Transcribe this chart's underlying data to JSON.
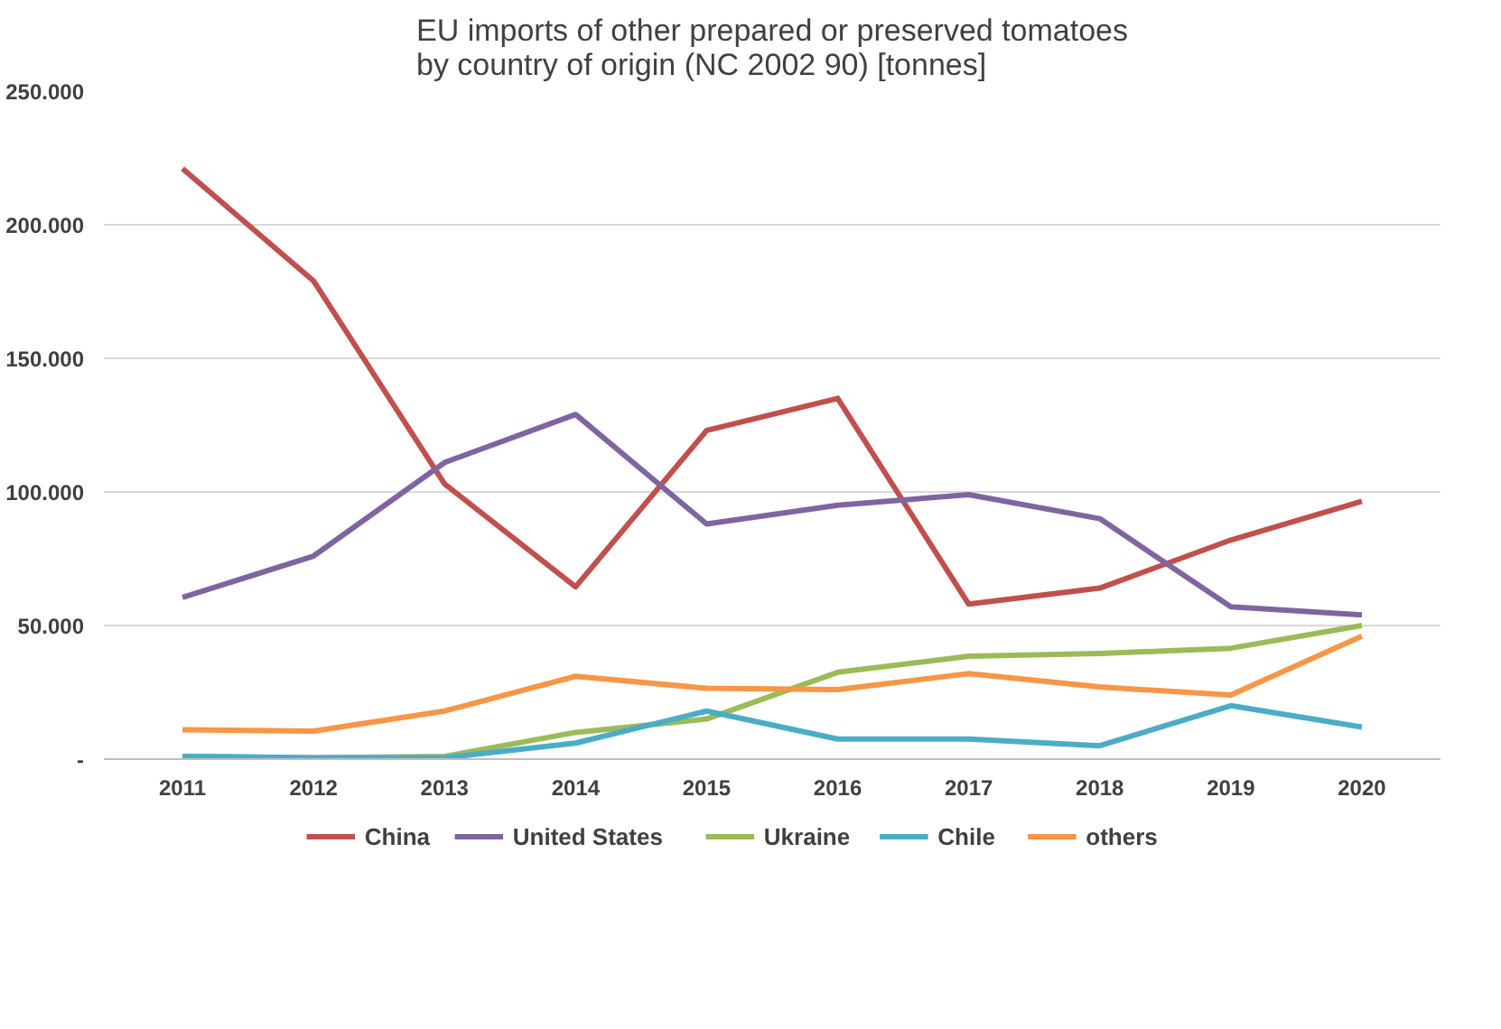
{
  "chart_data": {
    "type": "line",
    "title": "EU imports of other prepared or preserved tomatoes\nby country of origin (NC 2002 90) [tonnes]",
    "categories": [
      "2011",
      "2012",
      "2013",
      "2014",
      "2015",
      "2016",
      "2017",
      "2018",
      "2019",
      "2020"
    ],
    "series": [
      {
        "name": "China",
        "color": "#c0504d",
        "values": [
          221000,
          179000,
          103000,
          64500,
          123000,
          135000,
          58000,
          64000,
          82000,
          96500
        ]
      },
      {
        "name": "United States",
        "color": "#8064a2",
        "values": [
          60500,
          76000,
          111000,
          129000,
          88000,
          95000,
          99000,
          90000,
          57000,
          54000
        ]
      },
      {
        "name": "Ukraine",
        "color": "#9bbb59",
        "values": [
          1000,
          500,
          1000,
          10000,
          15000,
          32500,
          38500,
          39500,
          41500,
          50000
        ]
      },
      {
        "name": "Chile",
        "color": "#4bacc6",
        "values": [
          1000,
          500,
          500,
          6000,
          18000,
          7500,
          7500,
          5000,
          20000,
          12000
        ]
      },
      {
        "name": "others",
        "color": "#f79646",
        "values": [
          11000,
          10500,
          18000,
          31000,
          26500,
          26000,
          32000,
          27000,
          24000,
          46000
        ]
      }
    ],
    "ylim": [
      0,
      250000
    ],
    "yticks": [
      {
        "value": 0,
        "label": "-"
      },
      {
        "value": 50000,
        "label": "50.000"
      },
      {
        "value": 100000,
        "label": "100.000"
      },
      {
        "value": 150000,
        "label": "150.000"
      },
      {
        "value": 200000,
        "label": "200.000"
      },
      {
        "value": 250000,
        "label": "250.000"
      }
    ],
    "grid": "y",
    "legend": "bottom",
    "marker": "none",
    "line_style": "solid"
  }
}
